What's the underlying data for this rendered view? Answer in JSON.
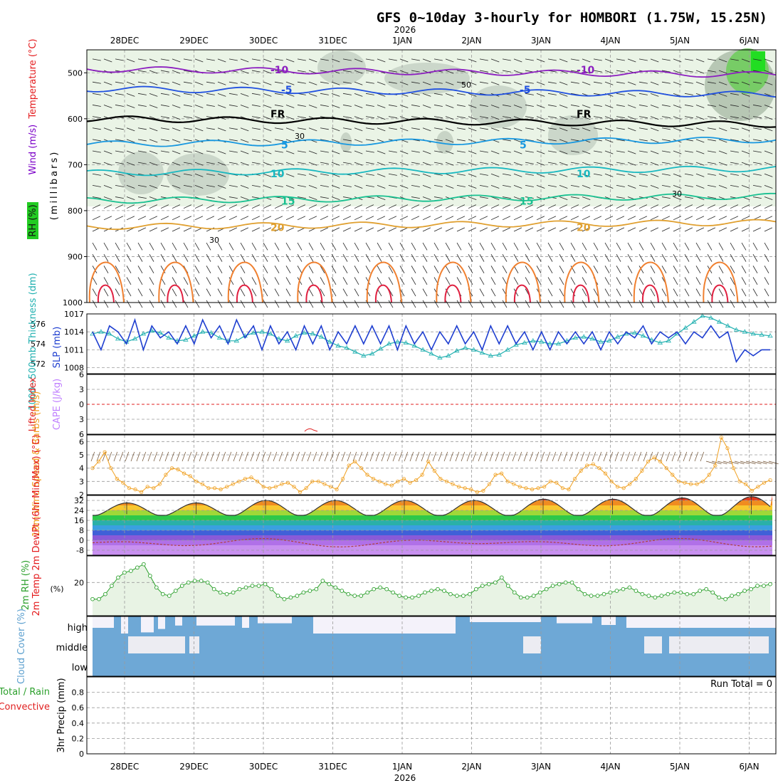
{
  "title": "GFS 0~10day 3-hourly for HOMBORI (1.75W, 15.25N)",
  "year": "2026",
  "dates": [
    "28DEC",
    "29DEC",
    "30DEC",
    "31DEC",
    "1JAN",
    "2JAN",
    "3JAN",
    "4JAN",
    "5JAN",
    "6JAN"
  ],
  "colors": {
    "temperature": "#e41a1c",
    "wind": "#7b00c8",
    "rh": "#2ca02c",
    "slp": "#1f3fd0",
    "thickness": "#20b0b0",
    "lifted": "#e02020",
    "cape": "#c080ff",
    "wind10": "#f0a020",
    "cloud": "#6ea8d6",
    "cloudclear": "#f4f2fa"
  },
  "chart_data": [
    {
      "type": "contour",
      "name": "upper-air",
      "ylabel_parts": [
        "Wind (m/s)",
        "Temperature (°C)",
        "RH (%)"
      ],
      "ylabel2": "(millibars)",
      "pressure_ticks": [
        "500",
        "600",
        "700",
        "800",
        "900",
        "1000"
      ],
      "ylim": [
        450,
        1000
      ],
      "contours": [
        {
          "label": "-10",
          "pressure": 492,
          "color": "#8c1fc0"
        },
        {
          "label": "-5",
          "pressure": 535,
          "color": "#2050e0"
        },
        {
          "label": "FR",
          "pressure": 600,
          "color": "#000000"
        },
        {
          "label": "5",
          "pressure": 655,
          "color": "#1898e0"
        },
        {
          "label": "10",
          "pressure": 718,
          "color": "#18b8c0"
        },
        {
          "label": "15",
          "pressure": 778,
          "color": "#18c090"
        },
        {
          "label": "20",
          "pressure": 835,
          "color": "#e0a030"
        }
      ],
      "rh_labels": [
        "30",
        "50"
      ]
    },
    {
      "type": "line",
      "name": "slp-thickness",
      "ylabel_left": "1000~500mb Thickness (dm)",
      "ylabel_right": "SLP (mb)",
      "left_ticks": [
        "572",
        "574",
        "576"
      ],
      "right_ticks": [
        "1008",
        "1011",
        "1014",
        "1017"
      ],
      "slp_range": [
        1007,
        1017
      ],
      "slp": [
        1014,
        1011,
        1015,
        1014,
        1012,
        1016,
        1011,
        1015,
        1013,
        1014,
        1012,
        1015,
        1012,
        1016,
        1013,
        1015,
        1012,
        1016,
        1013,
        1015,
        1011,
        1015,
        1012,
        1014,
        1011,
        1015,
        1012,
        1015,
        1011,
        1014,
        1012,
        1015,
        1012,
        1015,
        1012,
        1015,
        1011,
        1015,
        1012,
        1014,
        1011,
        1014,
        1012,
        1015,
        1012,
        1014,
        1011,
        1015,
        1012,
        1015,
        1012,
        1014,
        1011,
        1014,
        1011,
        1014,
        1012,
        1014,
        1012,
        1014,
        1011,
        1014,
        1012,
        1014,
        1013,
        1015,
        1012,
        1014,
        1013,
        1014,
        1012,
        1014,
        1013,
        1015,
        1013,
        1014,
        1009,
        1011,
        1010,
        1011,
        1011
      ],
      "thickness_range": [
        571,
        577
      ],
      "thickness": [
        575,
        575.2,
        575,
        574.5,
        574.2,
        574.5,
        575,
        575.3,
        575.1,
        574.6,
        574.3,
        574.4,
        574.8,
        575.2,
        575.1,
        574.6,
        574.3,
        574.3,
        574.8,
        575.1,
        575.2,
        575,
        574.5,
        574.3,
        574.8,
        575.1,
        575,
        574.7,
        574.2,
        573.8,
        573.6,
        573.2,
        572.8,
        573,
        573.5,
        574,
        574.2,
        574.1,
        573.8,
        573.4,
        573,
        572.6,
        572.8,
        573.3,
        573.6,
        573.4,
        573.1,
        572.8,
        572.9,
        573.4,
        573.9,
        574.1,
        574.3,
        574.2,
        574,
        574,
        574.3,
        574.6,
        574.7,
        574.5,
        574.2,
        574.3,
        574.7,
        575,
        575.1,
        574.8,
        574.4,
        574.1,
        574.3,
        575,
        575.6,
        576.2,
        576.8,
        576.6,
        576.2,
        575.8,
        575.4,
        575.2,
        575,
        574.9,
        574.8
      ]
    },
    {
      "type": "line",
      "name": "lifted-cape",
      "ylabel_left": "Lifted Index",
      "ylabel_right": "CAPE (J/kg)",
      "ticks": [
        "6",
        "3",
        "0",
        "3",
        "6"
      ],
      "lifted_zero": 0
    },
    {
      "type": "line",
      "name": "wind10",
      "ylabel": "10m Wind Speed & Barbs (m/s)",
      "ticks": [
        "2",
        "3",
        "4",
        "5",
        "6"
      ],
      "ylim": [
        2,
        6.5
      ],
      "values": [
        4.0,
        4.5,
        5.2,
        4.0,
        3.2,
        2.9,
        2.5,
        2.4,
        2.2,
        2.6,
        2.5,
        2.8,
        3.5,
        4.0,
        3.9,
        3.6,
        3.4,
        3.0,
        2.8,
        2.5,
        2.5,
        2.4,
        2.6,
        2.8,
        3.0,
        3.2,
        3.3,
        3.0,
        2.6,
        2.5,
        2.6,
        2.8,
        2.9,
        2.6,
        2.2,
        2.5,
        3.0,
        3.0,
        2.8,
        2.6,
        2.4,
        3.2,
        4.2,
        4.5,
        4.0,
        3.5,
        3.2,
        3.0,
        2.8,
        2.7,
        3.0,
        3.2,
        2.9,
        3.1,
        3.5,
        4.5,
        3.8,
        3.2,
        3.0,
        2.8,
        2.6,
        2.5,
        2.4,
        2.2,
        2.3,
        2.8,
        3.5,
        3.6,
        3.0,
        2.8,
        2.6,
        2.5,
        2.4,
        2.5,
        2.6,
        3.0,
        2.9,
        2.5,
        2.4,
        3.2,
        3.8,
        4.2,
        4.3,
        4.0,
        3.6,
        3.0,
        2.6,
        2.5,
        2.8,
        3.2,
        3.8,
        4.5,
        4.8,
        4.5,
        4.0,
        3.5,
        3.0,
        2.9,
        2.8,
        2.8,
        3.0,
        3.5,
        4.2,
        6.3,
        5.5,
        4.0,
        3.0,
        2.8,
        2.3,
        2.6,
        2.9,
        3.1
      ]
    },
    {
      "type": "area",
      "name": "temp-dewpt",
      "ylabel": "2m Temp 2m DewPt (6hr Min/Max) (°C)",
      "ticks": [
        "32",
        "24",
        "16",
        "8",
        "0",
        "-8"
      ],
      "ylim": [
        -12,
        36
      ],
      "temp_min": 20,
      "temp_max": [
        30,
        30,
        32,
        32,
        32,
        32,
        33,
        33,
        34,
        35
      ],
      "dewpt_mean": -2
    },
    {
      "type": "area",
      "name": "rh2m",
      "ylabel": "2m RH (%)",
      "ticks": [
        "20"
      ],
      "ylim": [
        0,
        36
      ],
      "values": [
        10,
        10,
        13,
        18,
        23,
        26,
        27,
        29,
        31,
        24,
        17,
        13,
        12,
        15,
        18,
        20,
        21,
        21,
        20,
        16,
        14,
        13,
        14,
        16,
        17,
        18,
        18,
        19,
        16,
        12,
        10,
        11,
        12,
        14,
        15,
        16,
        21,
        19,
        17,
        15,
        13,
        12,
        12,
        14,
        16,
        17,
        16,
        14,
        12,
        11,
        11,
        12,
        14,
        15,
        16,
        15,
        13,
        12,
        12,
        13,
        16,
        18,
        19,
        20,
        23,
        18,
        14,
        11,
        11,
        12,
        14,
        16,
        18,
        19,
        20,
        20,
        16,
        13,
        12,
        12,
        13,
        14,
        15,
        16,
        17,
        15,
        13,
        12,
        11,
        12,
        13,
        14,
        14,
        13,
        13,
        15,
        16,
        14,
        11,
        10,
        12,
        13,
        15,
        16,
        18,
        18,
        19
      ]
    },
    {
      "type": "heatmap",
      "name": "cloud-cover",
      "ylabel": "Cloud Cover (%)",
      "levels": [
        "high",
        "middle",
        "low"
      ]
    },
    {
      "type": "bar",
      "name": "precip",
      "ylabel_left": "Total / Rain",
      "ylabel_left2": "Convective",
      "ylabel": "3hr Precip (mm)",
      "ticks": [
        "0",
        "0.2",
        "0.4",
        "0.6",
        "0.8"
      ],
      "ylim": [
        0,
        1
      ],
      "run_total": "Run Total = 0",
      "values": []
    }
  ]
}
